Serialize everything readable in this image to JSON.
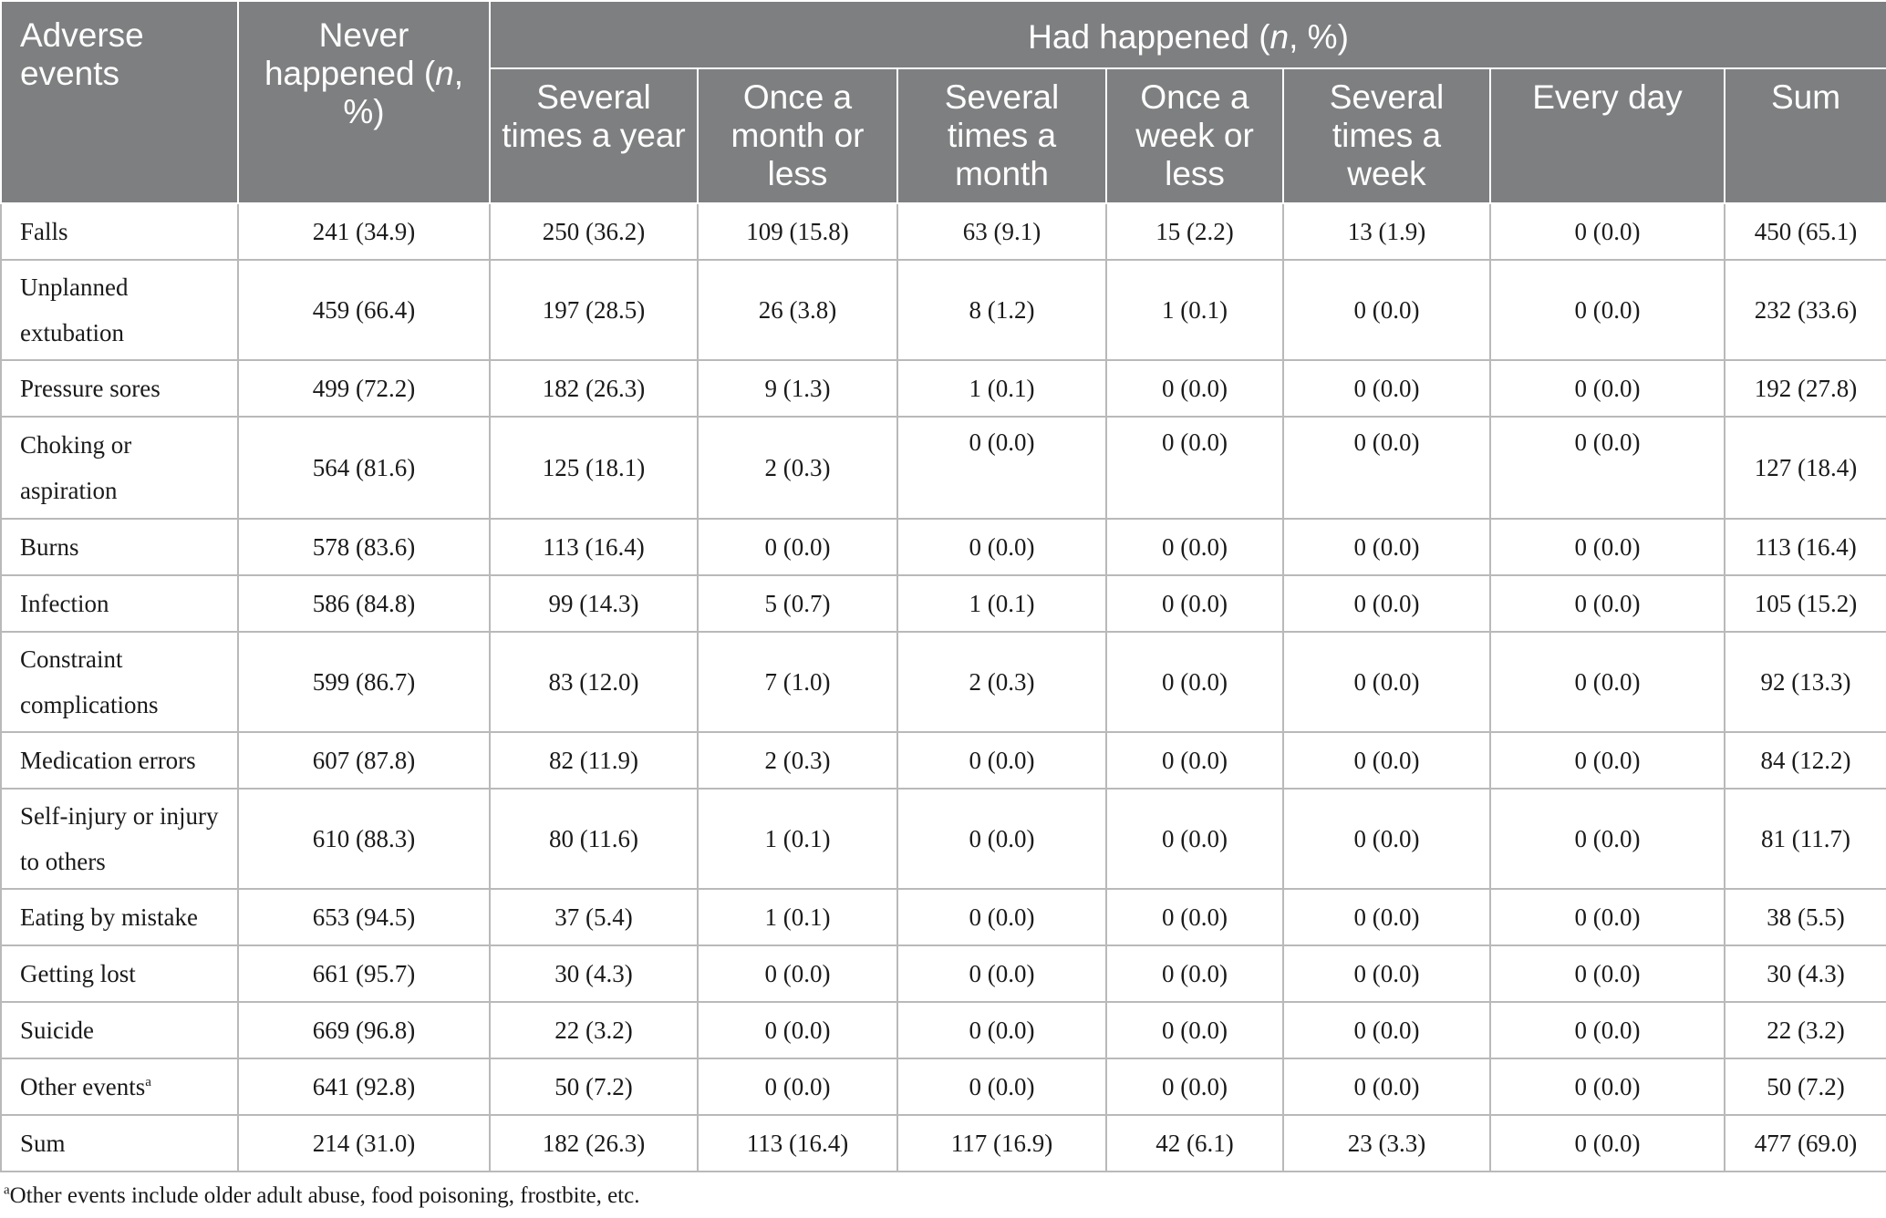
{
  "header": {
    "col_adverse": "Adverse events",
    "col_never_pre": "Never happened (",
    "col_never_n": "n",
    "col_never_post": ", %)",
    "col_had_pre": "Had happened (",
    "col_had_n": "n",
    "col_had_post": ", %)",
    "sub": [
      "Several times a year",
      "Once a month or less",
      "Several times a month",
      "Once a week or less",
      "Several times a week",
      "Every day",
      "Sum"
    ]
  },
  "rows": [
    {
      "label": "Falls",
      "label_sup": "",
      "cells": [
        "241 (34.9)",
        "250 (36.2)",
        "109 (15.8)",
        "63 (9.1)",
        "15 (2.2)",
        "13 (1.9)",
        "0 (0.0)",
        "450 (65.1)"
      ]
    },
    {
      "label": "Unplanned extubation",
      "label_sup": "",
      "cells": [
        "459 (66.4)",
        "197 (28.5)",
        "26 (3.8)",
        "8 (1.2)",
        "1 (0.1)",
        "0 (0.0)",
        "0 (0.0)",
        "232 (33.6)"
      ]
    },
    {
      "label": "Pressure sores",
      "label_sup": "",
      "cells": [
        "499 (72.2)",
        "182 (26.3)",
        "9 (1.3)",
        "1 (0.1)",
        "0 (0.0)",
        "0 (0.0)",
        "0 (0.0)",
        "192 (27.8)"
      ]
    },
    {
      "label": "Choking or aspiration",
      "label_sup": "",
      "cells": [
        "564 (81.6)",
        "125 (18.1)",
        "2 (0.3)",
        "0 (0.0)",
        "0 (0.0)",
        "0 (0.0)",
        "0 (0.0)",
        "127 (18.4)"
      ]
    },
    {
      "label": "Burns",
      "label_sup": "",
      "cells": [
        "578 (83.6)",
        "113 (16.4)",
        "0 (0.0)",
        "0 (0.0)",
        "0 (0.0)",
        "0 (0.0)",
        "0 (0.0)",
        "113 (16.4)"
      ]
    },
    {
      "label": "Infection",
      "label_sup": "",
      "cells": [
        "586 (84.8)",
        "99 (14.3)",
        "5 (0.7)",
        "1 (0.1)",
        "0 (0.0)",
        "0 (0.0)",
        "0 (0.0)",
        "105 (15.2)"
      ]
    },
    {
      "label": "Constraint complications",
      "label_sup": "",
      "cells": [
        "599 (86.7)",
        "83 (12.0)",
        "7 (1.0)",
        "2 (0.3)",
        "0 (0.0)",
        "0 (0.0)",
        "0 (0.0)",
        "92 (13.3)"
      ]
    },
    {
      "label": "Medication errors",
      "label_sup": "",
      "cells": [
        "607 (87.8)",
        "82 (11.9)",
        "2 (0.3)",
        "0 (0.0)",
        "0 (0.0)",
        "0 (0.0)",
        "0 (0.0)",
        "84 (12.2)"
      ]
    },
    {
      "label": "Self-injury or injury to others",
      "label_sup": "",
      "cells": [
        "610 (88.3)",
        "80 (11.6)",
        "1 (0.1)",
        "0 (0.0)",
        "0 (0.0)",
        "0 (0.0)",
        "0 (0.0)",
        "81 (11.7)"
      ]
    },
    {
      "label": "Eating by mistake",
      "label_sup": "",
      "cells": [
        "653 (94.5)",
        "37 (5.4)",
        "1 (0.1)",
        "0 (0.0)",
        "0 (0.0)",
        "0 (0.0)",
        "0 (0.0)",
        "38 (5.5)"
      ]
    },
    {
      "label": "Getting lost",
      "label_sup": "",
      "cells": [
        "661 (95.7)",
        "30 (4.3)",
        "0 (0.0)",
        "0 (0.0)",
        "0 (0.0)",
        "0 (0.0)",
        "0 (0.0)",
        "30 (4.3)"
      ]
    },
    {
      "label": "Suicide",
      "label_sup": "",
      "cells": [
        "669 (96.8)",
        "22 (3.2)",
        "0 (0.0)",
        "0 (0.0)",
        "0 (0.0)",
        "0 (0.0)",
        "0 (0.0)",
        "22 (3.2)"
      ]
    },
    {
      "label": "Other events",
      "label_sup": "a",
      "cells": [
        "641 (92.8)",
        "50 (7.2)",
        "0 (0.0)",
        "0 (0.0)",
        "0 (0.0)",
        "0 (0.0)",
        "0 (0.0)",
        "50 (7.2)"
      ]
    },
    {
      "label": "Sum",
      "label_sup": "",
      "cells": [
        "214 (31.0)",
        "182 (26.3)",
        "113 (16.4)",
        "117 (16.9)",
        "42 (6.1)",
        "23 (3.3)",
        "0 (0.0)",
        "477 (69.0)"
      ]
    }
  ],
  "footnote": {
    "marker": "a",
    "text": "Other events include older adult abuse, food poisoning, frostbite, etc."
  }
}
